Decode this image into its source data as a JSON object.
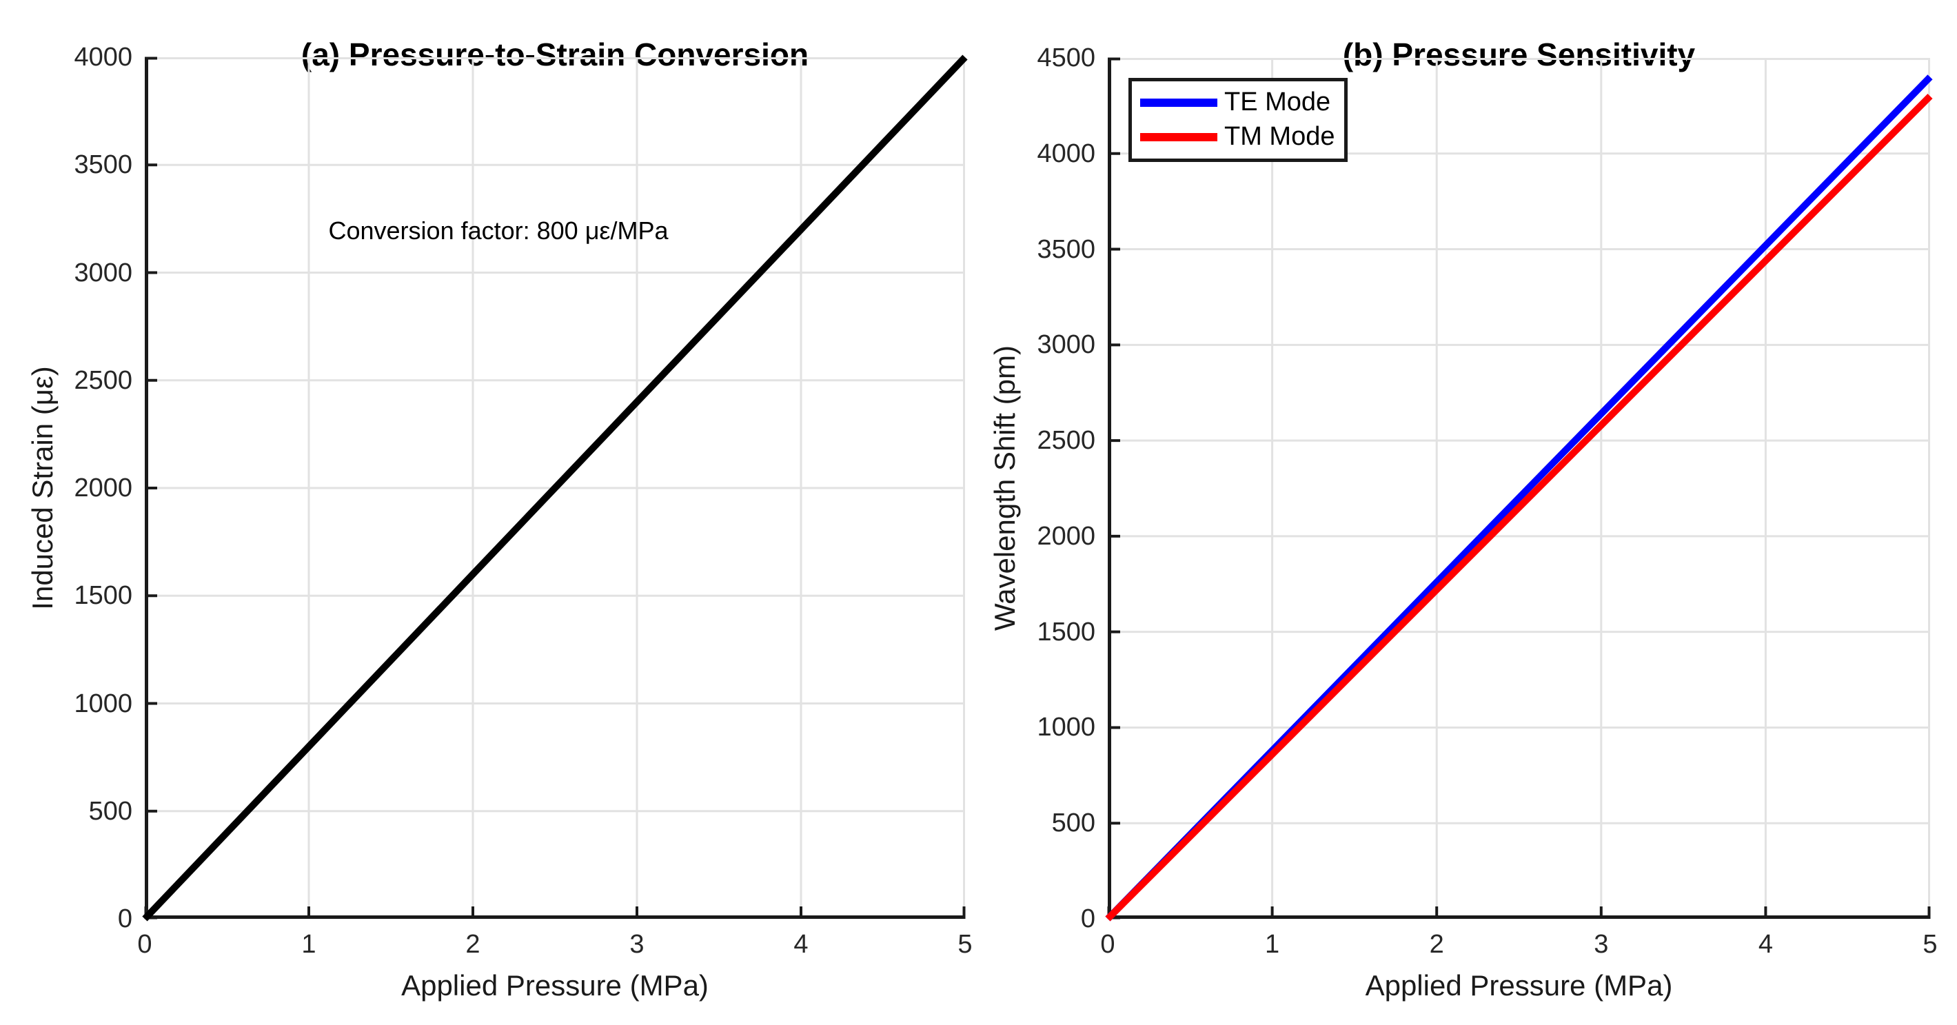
{
  "figure": {
    "background": "#ffffff"
  },
  "colors": {
    "axis": "#1a1a1a",
    "grid": "#e2e2e2",
    "tick_label": "#262626",
    "strain_line": "#000000",
    "te_mode": "#0000ff",
    "tm_mode": "#ff0000",
    "legend_border": "#1a1a1a",
    "legend_background": "#ffffff"
  },
  "chart_data": [
    {
      "id": "pressure-to-strain",
      "type": "line",
      "title": "(a) Pressure-to-Strain Conversion",
      "xlabel": "Applied Pressure (MPa)",
      "ylabel": "Induced Strain (με)",
      "xlim": [
        0,
        5
      ],
      "ylim": [
        0,
        4000
      ],
      "xticks": [
        0,
        1,
        2,
        3,
        4,
        5
      ],
      "yticks": [
        0,
        500,
        1000,
        1500,
        2000,
        2500,
        3000,
        3500,
        4000
      ],
      "grid": true,
      "annotation": "Conversion factor: 800 με/MPa",
      "series": [
        {
          "name": "Induced Strain",
          "color": "#000000",
          "x": [
            0,
            1,
            2,
            3,
            4,
            5
          ],
          "y": [
            0,
            800,
            1600,
            2400,
            3200,
            4000
          ]
        }
      ]
    },
    {
      "id": "pressure-sensitivity",
      "type": "line",
      "title": "(b) Pressure Sensitivity",
      "xlabel": "Applied Pressure (MPa)",
      "ylabel": "Wavelength Shift (pm)",
      "xlim": [
        0,
        5
      ],
      "ylim": [
        0,
        4500
      ],
      "xticks": [
        0,
        1,
        2,
        3,
        4,
        5
      ],
      "yticks": [
        0,
        500,
        1000,
        1500,
        2000,
        2500,
        3000,
        3500,
        4000,
        4500
      ],
      "grid": true,
      "legend": {
        "position": "top-left",
        "entries": [
          "TE Mode",
          "TM Mode"
        ]
      },
      "series": [
        {
          "name": "TE Mode",
          "color": "#0000ff",
          "x": [
            0,
            1,
            2,
            3,
            4,
            5
          ],
          "y": [
            0,
            880,
            1760,
            2640,
            3520,
            4400
          ]
        },
        {
          "name": "TM Mode",
          "color": "#ff0000",
          "x": [
            0,
            1,
            2,
            3,
            4,
            5
          ],
          "y": [
            0,
            860,
            1720,
            2580,
            3440,
            4300
          ]
        }
      ]
    }
  ]
}
